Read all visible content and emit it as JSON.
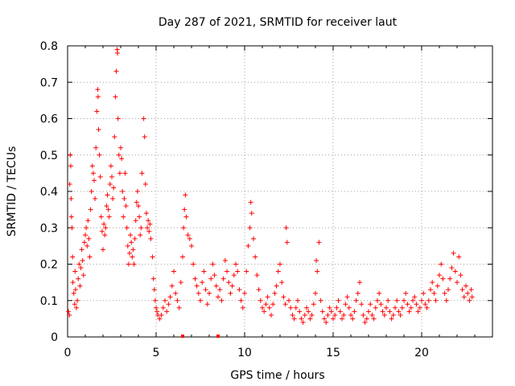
{
  "chart_data": {
    "type": "scatter",
    "title": "Day 287 of 2021, SRMTID for receiver laut",
    "xlabel": "GPS time / hours",
    "ylabel": "SRMTID / TECUs",
    "xlim": [
      0,
      24
    ],
    "ylim": [
      0,
      0.8
    ],
    "xticks": [
      0,
      5,
      10,
      15,
      20
    ],
    "xtick_labels": [
      "0",
      "5",
      "10",
      "15",
      "20"
    ],
    "yticks": [
      0,
      0.1,
      0.2,
      0.3,
      0.4,
      0.5,
      0.6,
      0.7,
      0.8
    ],
    "ytick_labels": [
      "0",
      "0.1",
      "0.2",
      "0.3",
      "0.4",
      "0.5",
      "0.6",
      "0.7",
      "0.8"
    ],
    "grid": true,
    "marker": "+",
    "color": "#ff0000",
    "series": [
      {
        "name": "SRMTID",
        "points": [
          [
            0.05,
            0.07
          ],
          [
            0.1,
            0.06
          ],
          [
            0.12,
            0.42
          ],
          [
            0.15,
            0.5
          ],
          [
            0.18,
            0.47
          ],
          [
            0.2,
            0.38
          ],
          [
            0.22,
            0.33
          ],
          [
            0.25,
            0.3
          ],
          [
            0.28,
            0.22
          ],
          [
            0.3,
            0.15
          ],
          [
            0.35,
            0.12
          ],
          [
            0.4,
            0.09
          ],
          [
            0.42,
            0.18
          ],
          [
            0.45,
            0.13
          ],
          [
            0.5,
            0.08
          ],
          [
            0.55,
            0.1
          ],
          [
            0.6,
            0.16
          ],
          [
            0.65,
            0.2
          ],
          [
            0.7,
            0.14
          ],
          [
            0.75,
            0.19
          ],
          [
            0.8,
            0.24
          ],
          [
            0.85,
            0.21
          ],
          [
            0.9,
            0.17
          ],
          [
            0.95,
            0.26
          ],
          [
            1.0,
            0.28
          ],
          [
            1.05,
            0.3
          ],
          [
            1.1,
            0.25
          ],
          [
            1.15,
            0.32
          ],
          [
            1.2,
            0.27
          ],
          [
            1.25,
            0.22
          ],
          [
            1.3,
            0.35
          ],
          [
            1.35,
            0.4
          ],
          [
            1.4,
            0.47
          ],
          [
            1.45,
            0.45
          ],
          [
            1.5,
            0.43
          ],
          [
            1.55,
            0.38
          ],
          [
            1.6,
            0.52
          ],
          [
            1.65,
            0.62
          ],
          [
            1.7,
            0.68
          ],
          [
            1.72,
            0.66
          ],
          [
            1.75,
            0.57
          ],
          [
            1.8,
            0.5
          ],
          [
            1.85,
            0.44
          ],
          [
            1.9,
            0.33
          ],
          [
            1.95,
            0.29
          ],
          [
            2.0,
            0.24
          ],
          [
            2.05,
            0.31
          ],
          [
            2.1,
            0.28
          ],
          [
            2.15,
            0.3
          ],
          [
            2.2,
            0.36
          ],
          [
            2.25,
            0.39
          ],
          [
            2.3,
            0.35
          ],
          [
            2.35,
            0.33
          ],
          [
            2.4,
            0.42
          ],
          [
            2.45,
            0.47
          ],
          [
            2.5,
            0.44
          ],
          [
            2.55,
            0.38
          ],
          [
            2.6,
            0.41
          ],
          [
            2.65,
            0.55
          ],
          [
            2.7,
            0.66
          ],
          [
            2.75,
            0.73
          ],
          [
            2.8,
            0.79
          ],
          [
            2.82,
            0.78
          ],
          [
            2.85,
            0.6
          ],
          [
            2.9,
            0.5
          ],
          [
            2.95,
            0.45
          ],
          [
            3.0,
            0.52
          ],
          [
            3.05,
            0.49
          ],
          [
            3.1,
            0.4
          ],
          [
            3.15,
            0.33
          ],
          [
            3.2,
            0.38
          ],
          [
            3.25,
            0.45
          ],
          [
            3.3,
            0.36
          ],
          [
            3.35,
            0.3
          ],
          [
            3.4,
            0.25
          ],
          [
            3.45,
            0.2
          ],
          [
            3.5,
            0.23
          ],
          [
            3.55,
            0.28
          ],
          [
            3.6,
            0.26
          ],
          [
            3.65,
            0.22
          ],
          [
            3.7,
            0.24
          ],
          [
            3.75,
            0.2
          ],
          [
            3.8,
            0.27
          ],
          [
            3.85,
            0.32
          ],
          [
            3.9,
            0.37
          ],
          [
            3.95,
            0.4
          ],
          [
            4.0,
            0.36
          ],
          [
            4.05,
            0.33
          ],
          [
            4.1,
            0.28
          ],
          [
            4.15,
            0.3
          ],
          [
            4.2,
            0.45
          ],
          [
            4.3,
            0.6
          ],
          [
            4.35,
            0.55
          ],
          [
            4.4,
            0.42
          ],
          [
            4.45,
            0.34
          ],
          [
            4.5,
            0.3
          ],
          [
            4.55,
            0.32
          ],
          [
            4.6,
            0.29
          ],
          [
            4.65,
            0.31
          ],
          [
            4.7,
            0.27
          ],
          [
            4.8,
            0.22
          ],
          [
            4.85,
            0.16
          ],
          [
            4.9,
            0.13
          ],
          [
            4.95,
            0.1
          ],
          [
            5.0,
            0.08
          ],
          [
            5.05,
            0.07
          ],
          [
            5.1,
            0.06
          ],
          [
            5.2,
            0.05
          ],
          [
            5.3,
            0.06
          ],
          [
            5.4,
            0.08
          ],
          [
            5.5,
            0.1
          ],
          [
            5.6,
            0.07
          ],
          [
            5.7,
            0.09
          ],
          [
            5.8,
            0.11
          ],
          [
            5.9,
            0.14
          ],
          [
            6.0,
            0.18
          ],
          [
            6.1,
            0.12
          ],
          [
            6.2,
            0.1
          ],
          [
            6.3,
            0.08
          ],
          [
            6.4,
            0.15
          ],
          [
            6.5,
            0.22
          ],
          [
            6.55,
            0.3
          ],
          [
            6.6,
            0.35
          ],
          [
            6.65,
            0.39
          ],
          [
            6.7,
            0.33
          ],
          [
            6.8,
            0.28
          ],
          [
            6.9,
            0.27
          ],
          [
            7.0,
            0.25
          ],
          [
            7.1,
            0.2
          ],
          [
            7.2,
            0.16
          ],
          [
            7.3,
            0.14
          ],
          [
            7.4,
            0.12
          ],
          [
            7.5,
            0.1
          ],
          [
            7.6,
            0.15
          ],
          [
            7.7,
            0.18
          ],
          [
            7.8,
            0.13
          ],
          [
            7.9,
            0.09
          ],
          [
            8.0,
            0.12
          ],
          [
            8.1,
            0.16
          ],
          [
            8.2,
            0.2
          ],
          [
            8.3,
            0.17
          ],
          [
            8.4,
            0.14
          ],
          [
            8.5,
            0.11
          ],
          [
            8.6,
            0.13
          ],
          [
            8.7,
            0.1
          ],
          [
            8.8,
            0.16
          ],
          [
            8.9,
            0.21
          ],
          [
            9.0,
            0.18
          ],
          [
            9.1,
            0.15
          ],
          [
            9.2,
            0.12
          ],
          [
            9.3,
            0.14
          ],
          [
            9.4,
            0.17
          ],
          [
            9.5,
            0.2
          ],
          [
            9.6,
            0.18
          ],
          [
            9.7,
            0.13
          ],
          [
            9.8,
            0.1
          ],
          [
            9.9,
            0.08
          ],
          [
            10.0,
            0.12
          ],
          [
            10.1,
            0.18
          ],
          [
            10.2,
            0.25
          ],
          [
            10.3,
            0.3
          ],
          [
            10.35,
            0.37
          ],
          [
            10.4,
            0.34
          ],
          [
            10.5,
            0.27
          ],
          [
            10.6,
            0.22
          ],
          [
            10.7,
            0.17
          ],
          [
            10.8,
            0.13
          ],
          [
            10.9,
            0.1
          ],
          [
            11.0,
            0.08
          ],
          [
            11.1,
            0.07
          ],
          [
            11.2,
            0.09
          ],
          [
            11.3,
            0.11
          ],
          [
            11.4,
            0.08
          ],
          [
            11.5,
            0.06
          ],
          [
            11.6,
            0.09
          ],
          [
            11.7,
            0.12
          ],
          [
            11.8,
            0.14
          ],
          [
            11.9,
            0.18
          ],
          [
            12.0,
            0.2
          ],
          [
            12.1,
            0.15
          ],
          [
            12.2,
            0.11
          ],
          [
            12.3,
            0.09
          ],
          [
            12.35,
            0.3
          ],
          [
            12.4,
            0.26
          ],
          [
            12.5,
            0.1
          ],
          [
            12.6,
            0.08
          ],
          [
            12.7,
            0.06
          ],
          [
            12.8,
            0.05
          ],
          [
            12.9,
            0.08
          ],
          [
            13.0,
            0.1
          ],
          [
            13.1,
            0.07
          ],
          [
            13.2,
            0.05
          ],
          [
            13.3,
            0.04
          ],
          [
            13.4,
            0.06
          ],
          [
            13.5,
            0.08
          ],
          [
            13.6,
            0.07
          ],
          [
            13.7,
            0.05
          ],
          [
            13.8,
            0.06
          ],
          [
            13.9,
            0.09
          ],
          [
            14.0,
            0.12
          ],
          [
            14.05,
            0.21
          ],
          [
            14.1,
            0.18
          ],
          [
            14.2,
            0.26
          ],
          [
            14.3,
            0.1
          ],
          [
            14.4,
            0.07
          ],
          [
            14.5,
            0.05
          ],
          [
            14.6,
            0.04
          ],
          [
            14.7,
            0.06
          ],
          [
            14.8,
            0.08
          ],
          [
            14.9,
            0.07
          ],
          [
            15.0,
            0.05
          ],
          [
            15.1,
            0.06
          ],
          [
            15.2,
            0.08
          ],
          [
            15.3,
            0.1
          ],
          [
            15.4,
            0.07
          ],
          [
            15.5,
            0.05
          ],
          [
            15.6,
            0.06
          ],
          [
            15.7,
            0.09
          ],
          [
            15.8,
            0.11
          ],
          [
            15.9,
            0.08
          ],
          [
            16.0,
            0.06
          ],
          [
            16.1,
            0.05
          ],
          [
            16.2,
            0.07
          ],
          [
            16.3,
            0.1
          ],
          [
            16.4,
            0.12
          ],
          [
            16.5,
            0.15
          ],
          [
            16.6,
            0.09
          ],
          [
            16.7,
            0.06
          ],
          [
            16.8,
            0.04
          ],
          [
            16.9,
            0.05
          ],
          [
            17.0,
            0.07
          ],
          [
            17.1,
            0.09
          ],
          [
            17.2,
            0.06
          ],
          [
            17.3,
            0.05
          ],
          [
            17.4,
            0.08
          ],
          [
            17.5,
            0.1
          ],
          [
            17.6,
            0.12
          ],
          [
            17.7,
            0.09
          ],
          [
            17.8,
            0.07
          ],
          [
            17.9,
            0.06
          ],
          [
            18.0,
            0.08
          ],
          [
            18.1,
            0.1
          ],
          [
            18.2,
            0.07
          ],
          [
            18.3,
            0.05
          ],
          [
            18.4,
            0.06
          ],
          [
            18.5,
            0.08
          ],
          [
            18.6,
            0.1
          ],
          [
            18.7,
            0.07
          ],
          [
            18.8,
            0.06
          ],
          [
            18.9,
            0.08
          ],
          [
            19.0,
            0.1
          ],
          [
            19.1,
            0.12
          ],
          [
            19.2,
            0.09
          ],
          [
            19.3,
            0.07
          ],
          [
            19.4,
            0.08
          ],
          [
            19.5,
            0.1
          ],
          [
            19.6,
            0.11
          ],
          [
            19.7,
            0.09
          ],
          [
            19.8,
            0.07
          ],
          [
            19.9,
            0.08
          ],
          [
            20.0,
            0.1
          ],
          [
            20.1,
            0.12
          ],
          [
            20.2,
            0.09
          ],
          [
            20.3,
            0.08
          ],
          [
            20.4,
            0.1
          ],
          [
            20.5,
            0.13
          ],
          [
            20.6,
            0.15
          ],
          [
            20.7,
            0.12
          ],
          [
            20.8,
            0.1
          ],
          [
            20.9,
            0.14
          ],
          [
            21.0,
            0.17
          ],
          [
            21.1,
            0.2
          ],
          [
            21.2,
            0.16
          ],
          [
            21.3,
            0.12
          ],
          [
            21.4,
            0.1
          ],
          [
            21.5,
            0.13
          ],
          [
            21.6,
            0.16
          ],
          [
            21.7,
            0.19
          ],
          [
            21.8,
            0.23
          ],
          [
            21.9,
            0.18
          ],
          [
            22.0,
            0.15
          ],
          [
            22.1,
            0.22
          ],
          [
            22.2,
            0.17
          ],
          [
            22.3,
            0.13
          ],
          [
            22.4,
            0.11
          ],
          [
            22.5,
            0.14
          ],
          [
            22.6,
            0.12
          ],
          [
            22.7,
            0.1
          ],
          [
            22.8,
            0.13
          ],
          [
            22.85,
            0.11
          ]
        ]
      }
    ],
    "axis_marks": [
      6.5,
      8.5
    ]
  }
}
